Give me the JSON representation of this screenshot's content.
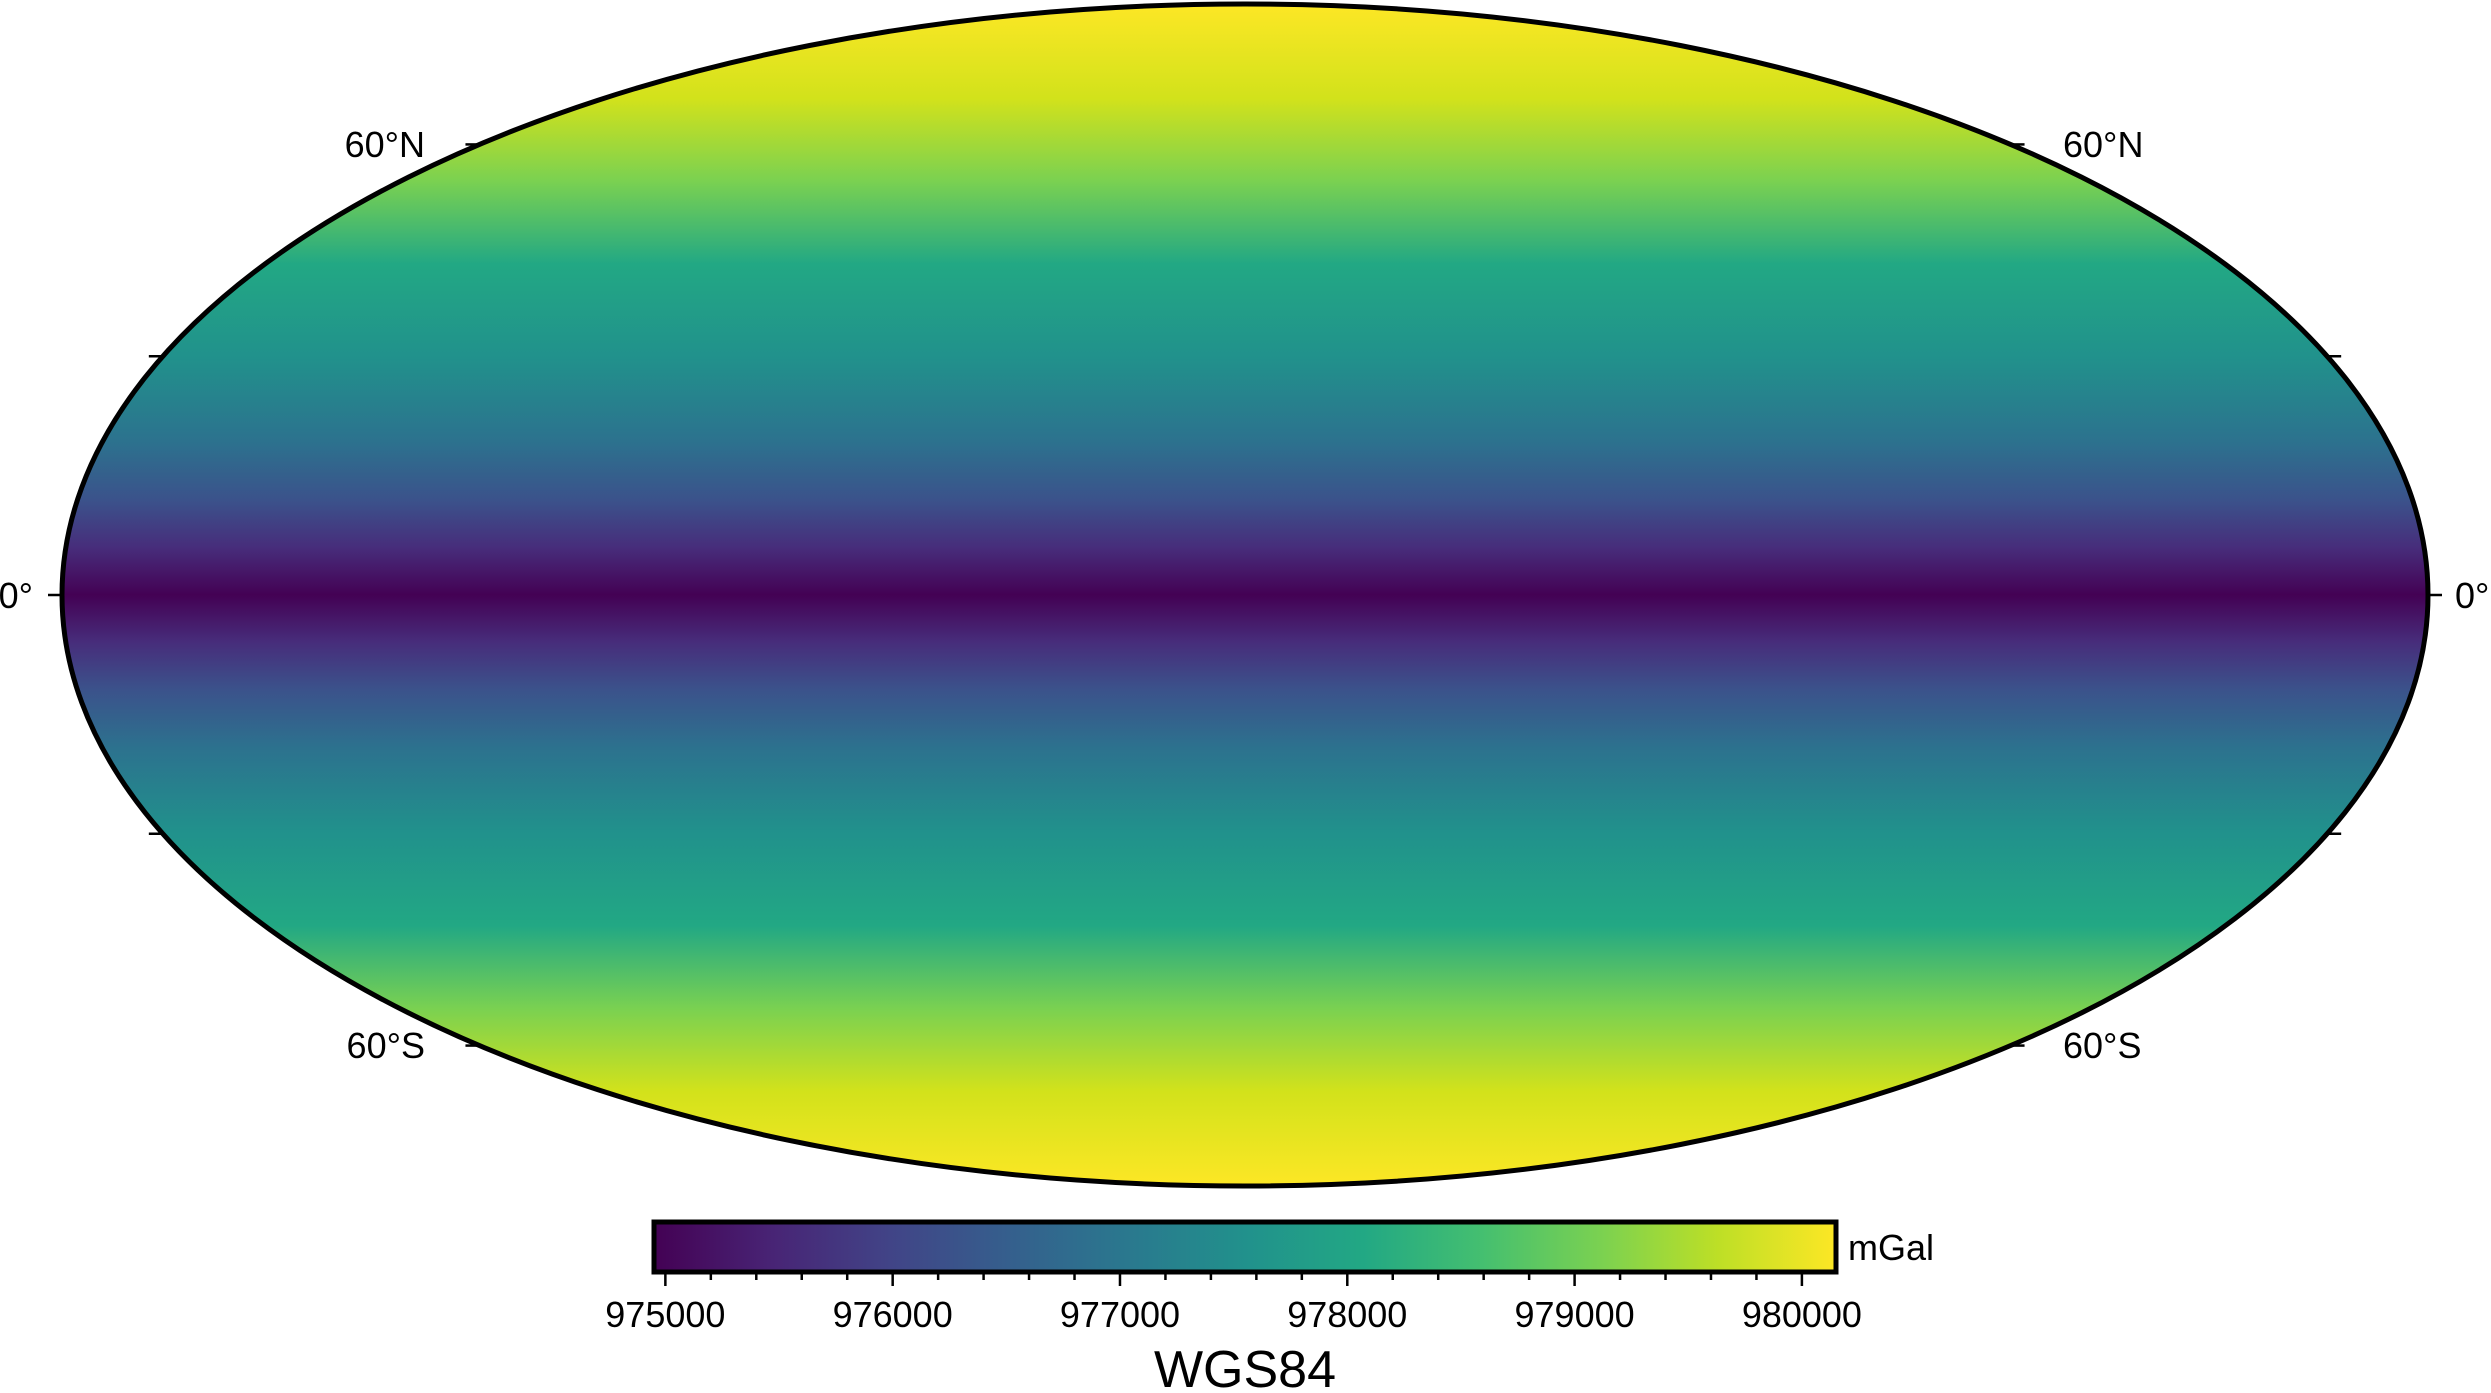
{
  "map": {
    "projection": "mollweide",
    "shading": "latitude-dependent normal gravity",
    "colormap": "viridis",
    "frame_color": "#000000"
  },
  "latitude_labels": {
    "north_60": "60°N",
    "equator": "0°",
    "south_60": "60°S"
  },
  "colorbar": {
    "unit": "mGal",
    "range": [
      974950,
      980150
    ],
    "ticks": [
      {
        "value": 975000,
        "label": "975000"
      },
      {
        "value": 976000,
        "label": "976000"
      },
      {
        "value": 977000,
        "label": "977000"
      },
      {
        "value": 978000,
        "label": "978000"
      },
      {
        "value": 979000,
        "label": "979000"
      },
      {
        "value": 980000,
        "label": "980000"
      }
    ],
    "minor_tick_step": 200,
    "title": "WGS84"
  },
  "colors": {
    "low": "#440154",
    "mid_low": "#3b528b",
    "mid": "#21918c",
    "mid_high": "#5ec962",
    "high": "#fde725"
  }
}
